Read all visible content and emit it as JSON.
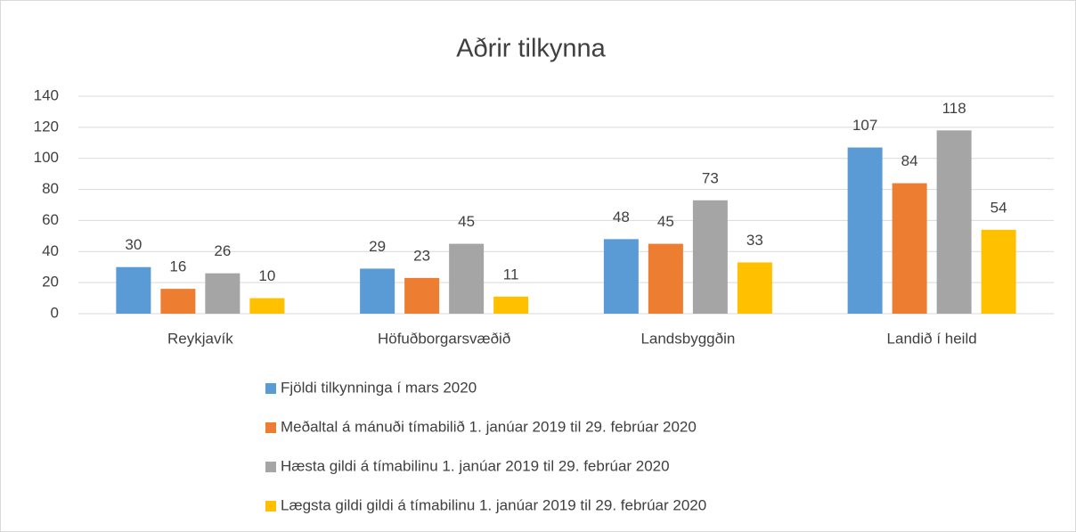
{
  "chart_data": {
    "type": "bar",
    "title": "Aðrir tilkynna",
    "categories": [
      "Reykjavík",
      "Höfuðborgarsvæðið",
      "Landsbyggðin",
      "Landið í heild"
    ],
    "series": [
      {
        "name": "Fjöldi tilkynninga í mars 2020",
        "color": "#5b9bd5",
        "values": [
          30,
          29,
          48,
          107
        ]
      },
      {
        "name": "Meðaltal á mánuði tímabilið 1. janúar 2019 til 29. febrúar 2020",
        "color": "#ed7d31",
        "values": [
          16,
          23,
          45,
          84
        ]
      },
      {
        "name": "Hæsta gildi á tímabilinu 1. janúar 2019 til 29. febrúar 2020",
        "color": "#a5a5a5",
        "values": [
          26,
          45,
          73,
          118
        ]
      },
      {
        "name": "Lægsta gildi gildi á tímabilinu 1. janúar 2019 til 29. febrúar 2020",
        "color": "#ffc000",
        "values": [
          10,
          11,
          33,
          54
        ]
      }
    ],
    "ylim": [
      0,
      140
    ],
    "yticks": [
      0,
      20,
      40,
      60,
      80,
      100,
      120,
      140
    ],
    "grid": true,
    "legend": "bottom"
  }
}
